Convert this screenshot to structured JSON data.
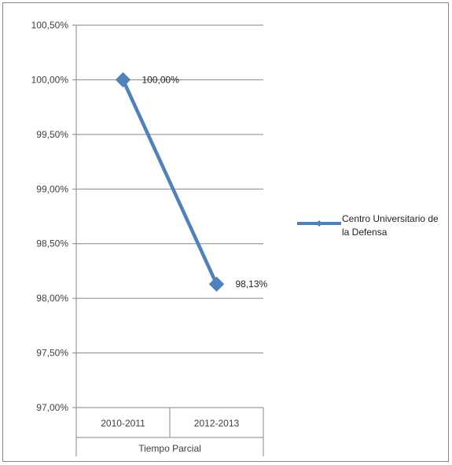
{
  "chart_data": {
    "type": "line",
    "categories": [
      "2010-2011",
      "2012-2013"
    ],
    "category_group_label": "Tiempo Parcial",
    "series": [
      {
        "name": "Centro Universitario de la Defensa",
        "values": [
          100.0,
          98.13
        ],
        "color": "#4f81bd"
      }
    ],
    "data_labels": [
      "100,00%",
      "98,13%"
    ],
    "ylim": [
      97.0,
      100.5
    ],
    "yticks": [
      97.0,
      97.5,
      98.0,
      98.5,
      99.0,
      99.5,
      100.0,
      100.5
    ],
    "ytick_labels": [
      "97,00%",
      "97,50%",
      "98,00%",
      "98,50%",
      "99,00%",
      "99,50%",
      "100,00%",
      "100,50%"
    ],
    "grid": true,
    "legend_position": "right",
    "marker": "diamond"
  }
}
